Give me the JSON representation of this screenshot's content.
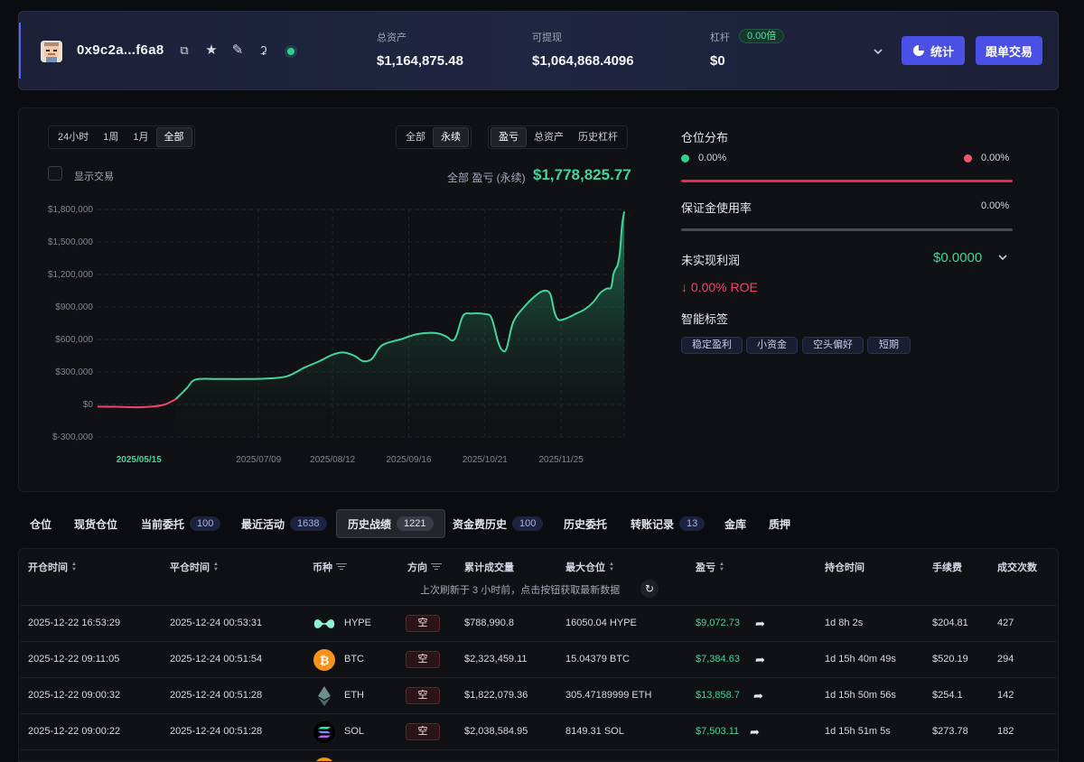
{
  "header": {
    "address": "0x9c2a...f6a8",
    "total_assets_label": "总资产",
    "total_assets": "$1,164,875.48",
    "withdrawable_label": "可提现",
    "withdrawable": "$1,064,868.4096",
    "leverage_label": "杠杆",
    "leverage_badge": "0.00倍",
    "leverage_value": "$0",
    "stats_button": "统计",
    "copy_trade_button": "跟单交易",
    "accent_color": "#4a50e6"
  },
  "chart_panel": {
    "range_options": [
      "24小时",
      "1周",
      "1月",
      "全部"
    ],
    "range_selected": "全部",
    "market_options": [
      "全部",
      "永续"
    ],
    "market_selected": "永续",
    "metric_options": [
      "盈亏",
      "总资产",
      "历史杠杆"
    ],
    "metric_selected": "盈亏",
    "show_trades_label": "显示交易",
    "pnl_label": "全部 盈亏 (永续)",
    "pnl_value": "$1,778,825.77"
  },
  "chart_data": {
    "type": "area",
    "ylim": [
      -300000,
      1800000
    ],
    "y_ticks": [
      "$1,800,000",
      "$1,500,000",
      "$1,200,000",
      "$900,000",
      "$600,000",
      "$300,000",
      "$0",
      "$-300,000"
    ],
    "y_tick_values": [
      1800000,
      1500000,
      1200000,
      900000,
      600000,
      300000,
      0,
      -300000
    ],
    "x_ticks": [
      "2025/05/15",
      "2025/07/09",
      "2025/08/12",
      "2025/09/16",
      "2025/10/21",
      "2025/11/25"
    ],
    "x_tick_dates": [
      "2025-05-15",
      "2025-07-09",
      "2025-08-12",
      "2025-09-16",
      "2025-10-21",
      "2025-11-25"
    ],
    "x_range": [
      "2025-04-26",
      "2025-12-24"
    ],
    "grid": true,
    "colors": {
      "positive": "#41d59a",
      "negative": "#f0446a"
    },
    "points": [
      [
        "2025-04-26",
        -20000
      ],
      [
        "2025-05-06",
        -22000
      ],
      [
        "2025-05-16",
        -25000
      ],
      [
        "2025-05-26",
        -5000
      ],
      [
        "2025-06-01",
        50000
      ],
      [
        "2025-06-06",
        150000
      ],
      [
        "2025-06-10",
        230000
      ],
      [
        "2025-06-20",
        235000
      ],
      [
        "2025-07-01",
        235000
      ],
      [
        "2025-07-12",
        238000
      ],
      [
        "2025-07-22",
        260000
      ],
      [
        "2025-07-30",
        340000
      ],
      [
        "2025-08-06",
        400000
      ],
      [
        "2025-08-12",
        460000
      ],
      [
        "2025-08-17",
        480000
      ],
      [
        "2025-08-22",
        450000
      ],
      [
        "2025-08-26",
        400000
      ],
      [
        "2025-08-30",
        420000
      ],
      [
        "2025-09-02",
        510000
      ],
      [
        "2025-09-05",
        560000
      ],
      [
        "2025-09-12",
        600000
      ],
      [
        "2025-09-20",
        650000
      ],
      [
        "2025-09-28",
        660000
      ],
      [
        "2025-10-03",
        630000
      ],
      [
        "2025-10-06",
        590000
      ],
      [
        "2025-10-08",
        640000
      ],
      [
        "2025-10-11",
        820000
      ],
      [
        "2025-10-15",
        840000
      ],
      [
        "2025-10-21",
        835000
      ],
      [
        "2025-10-24",
        800000
      ],
      [
        "2025-10-27",
        580000
      ],
      [
        "2025-10-29",
        500000
      ],
      [
        "2025-10-31",
        520000
      ],
      [
        "2025-11-03",
        760000
      ],
      [
        "2025-11-08",
        900000
      ],
      [
        "2025-11-13",
        1000000
      ],
      [
        "2025-11-17",
        1050000
      ],
      [
        "2025-11-20",
        1020000
      ],
      [
        "2025-11-22",
        850000
      ],
      [
        "2025-11-24",
        780000
      ],
      [
        "2025-11-28",
        800000
      ],
      [
        "2025-12-02",
        840000
      ],
      [
        "2025-12-06",
        880000
      ],
      [
        "2025-12-10",
        950000
      ],
      [
        "2025-12-13",
        1030000
      ],
      [
        "2025-12-16",
        1070000
      ],
      [
        "2025-12-18",
        1080000
      ],
      [
        "2025-12-19",
        1200000
      ],
      [
        "2025-12-20",
        1250000
      ],
      [
        "2025-12-21",
        1290000
      ],
      [
        "2025-12-22",
        1400000
      ],
      [
        "2025-12-23",
        1650000
      ],
      [
        "2025-12-24",
        1780000
      ]
    ]
  },
  "position_panel": {
    "distribution_label": "仓位分布",
    "long_pct": "0.00%",
    "short_pct": "0.00%",
    "margin_label": "保证金使用率",
    "margin_pct": "0.00%",
    "unrealized_label": "未实现利润",
    "unrealized_value": "$0.0000",
    "roe": "↓ 0.00% ROE",
    "tags_label": "智能标签",
    "tags": [
      "稳定盈利",
      "小资金",
      "空头偏好",
      "短期"
    ]
  },
  "tabs": [
    {
      "label": "仓位"
    },
    {
      "label": "现货仓位"
    },
    {
      "label": "当前委托",
      "count": "100"
    },
    {
      "label": "最近活动",
      "count": "1638"
    },
    {
      "label": "历史战绩",
      "count": "1221",
      "active": true
    },
    {
      "label": "资金费历史",
      "count": "100"
    },
    {
      "label": "历史委托"
    },
    {
      "label": "转账记录",
      "count": "13"
    },
    {
      "label": "金库"
    },
    {
      "label": "质押"
    }
  ],
  "table": {
    "columns": [
      "开仓时间",
      "平仓时间",
      "币种",
      "方向",
      "累计成交量",
      "最大仓位",
      "盈亏",
      "持仓时间",
      "手续费",
      "成交次数"
    ],
    "refresh_note": "上次刷新于 3 小时前，点击按钮获取最新数据",
    "rows": [
      {
        "open": "2025-12-22 16:53:29",
        "close": "2025-12-24 00:53:31",
        "coin": "HYPE",
        "dir": "空",
        "volume": "$788,990.8",
        "max_pos": "16050.04 HYPE",
        "pnl": "$9,072.73",
        "hold": "1d 8h 2s",
        "fee": "$204.81",
        "trades": "427"
      },
      {
        "open": "2025-12-22 09:11:05",
        "close": "2025-12-24 00:51:54",
        "coin": "BTC",
        "dir": "空",
        "volume": "$2,323,459.11",
        "max_pos": "15.04379 BTC",
        "pnl": "$7,384.63",
        "hold": "1d 15h 40m 49s",
        "fee": "$520.19",
        "trades": "294"
      },
      {
        "open": "2025-12-22 09:00:32",
        "close": "2025-12-24 00:51:28",
        "coin": "ETH",
        "dir": "空",
        "volume": "$1,822,079.36",
        "max_pos": "305.47189999 ETH",
        "pnl": "$13,858.7",
        "hold": "1d 15h 50m 56s",
        "fee": "$254.1",
        "trades": "142"
      },
      {
        "open": "2025-12-22 09:00:22",
        "close": "2025-12-24 00:51:28",
        "coin": "SOL",
        "dir": "空",
        "volume": "$2,038,584.95",
        "max_pos": "8149.31 SOL",
        "pnl": "$7,503.11",
        "hold": "1d 15h 51m 5s",
        "fee": "$273.78",
        "trades": "182"
      }
    ]
  }
}
